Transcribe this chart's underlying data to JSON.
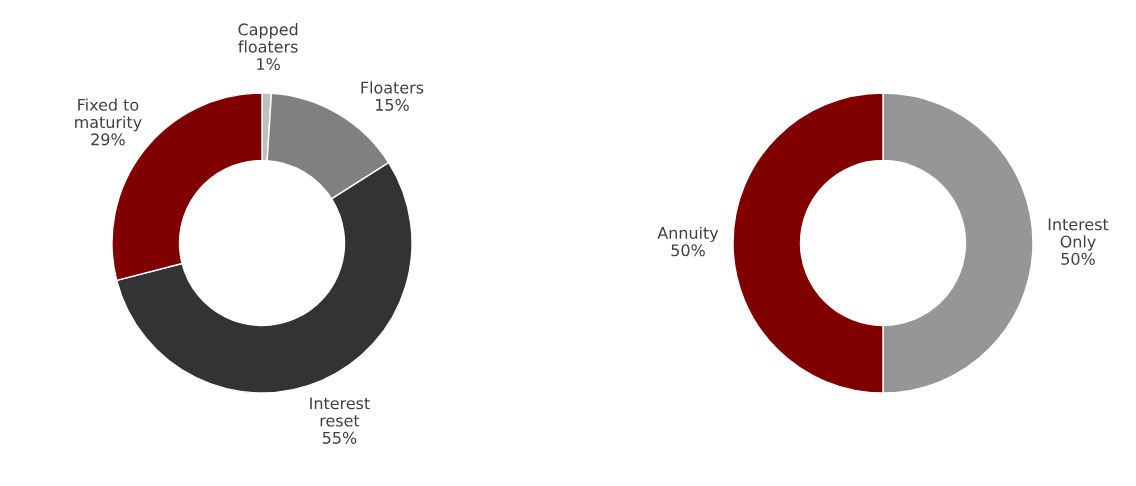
{
  "chart_data": [
    {
      "type": "donut",
      "categories": [
        "Capped floaters",
        "Floaters",
        "Interest reset",
        "Fixed to maturity"
      ],
      "values": [
        1,
        15,
        55,
        29
      ],
      "value_labels": [
        "1%",
        "15%",
        "55%",
        "29%"
      ],
      "colors": [
        "#c0c0c0",
        "#808080",
        "#333333",
        "#800000"
      ]
    },
    {
      "type": "donut",
      "categories": [
        "Interest Only",
        "Annuity"
      ],
      "values": [
        50,
        50
      ],
      "value_labels": [
        "50%",
        "50%"
      ],
      "colors": [
        "#969696",
        "#800000"
      ]
    }
  ]
}
